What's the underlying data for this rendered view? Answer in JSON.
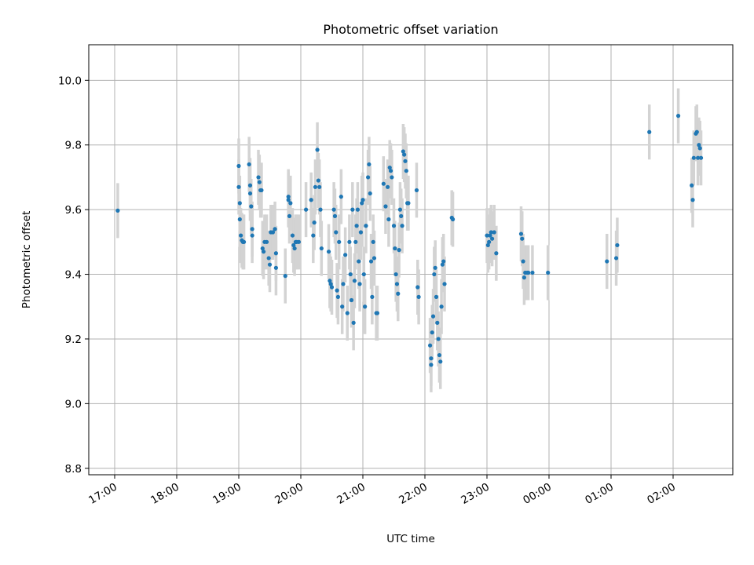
{
  "chart_data": {
    "type": "scatter",
    "title": "Photometric offset variation",
    "xlabel": "UTC time",
    "ylabel": "Photometric offset",
    "grid": true,
    "x_axis": {
      "type": "time",
      "range": [
        "17:00",
        "02:56"
      ],
      "ticks": [
        "17:00",
        "18:00",
        "19:00",
        "20:00",
        "21:00",
        "22:00",
        "23:00",
        "00:00",
        "01:00",
        "02:00"
      ]
    },
    "y_axis": {
      "range": [
        8.78,
        10.11
      ],
      "ticks": [
        "8.8",
        "9.0",
        "9.2",
        "9.4",
        "9.6",
        "9.8",
        "10.0"
      ]
    },
    "colors": {
      "marker": "#1f77b4",
      "errorbar": "#d3d3d3",
      "grid": "#b0b0b0"
    },
    "errorbar_halfwidth": 0.085,
    "series": [
      {
        "points": [
          {
            "x": "17:03",
            "y": 9.597
          },
          {
            "x": "19:00",
            "y": 9.735
          },
          {
            "x": "19:00",
            "y": 9.67
          },
          {
            "x": "19:01",
            "y": 9.62
          },
          {
            "x": "19:01",
            "y": 9.57
          },
          {
            "x": "19:02",
            "y": 9.52
          },
          {
            "x": "19:03",
            "y": 9.505
          },
          {
            "x": "19:04",
            "y": 9.5
          },
          {
            "x": "19:05",
            "y": 9.5
          },
          {
            "x": "19:10",
            "y": 9.74
          },
          {
            "x": "19:11",
            "y": 9.675
          },
          {
            "x": "19:11",
            "y": 9.65
          },
          {
            "x": "19:12",
            "y": 9.61
          },
          {
            "x": "19:13",
            "y": 9.54
          },
          {
            "x": "19:13",
            "y": 9.52
          },
          {
            "x": "19:19",
            "y": 9.7
          },
          {
            "x": "19:20",
            "y": 9.685
          },
          {
            "x": "19:21",
            "y": 9.66
          },
          {
            "x": "19:22",
            "y": 9.66
          },
          {
            "x": "19:23",
            "y": 9.48
          },
          {
            "x": "19:24",
            "y": 9.47
          },
          {
            "x": "19:25",
            "y": 9.5
          },
          {
            "x": "19:27",
            "y": 9.5
          },
          {
            "x": "19:29",
            "y": 9.45
          },
          {
            "x": "19:30",
            "y": 9.43
          },
          {
            "x": "19:31",
            "y": 9.53
          },
          {
            "x": "19:33",
            "y": 9.53
          },
          {
            "x": "19:35",
            "y": 9.54
          },
          {
            "x": "19:36",
            "y": 9.465
          },
          {
            "x": "19:36",
            "y": 9.42
          },
          {
            "x": "19:45",
            "y": 9.395
          },
          {
            "x": "19:48",
            "y": 9.64
          },
          {
            "x": "19:48",
            "y": 9.63
          },
          {
            "x": "19:49",
            "y": 9.58
          },
          {
            "x": "19:50",
            "y": 9.62
          },
          {
            "x": "19:52",
            "y": 9.52
          },
          {
            "x": "19:53",
            "y": 9.49
          },
          {
            "x": "19:54",
            "y": 9.48
          },
          {
            "x": "19:55",
            "y": 9.5
          },
          {
            "x": "19:56",
            "y": 9.5
          },
          {
            "x": "19:58",
            "y": 9.5
          },
          {
            "x": "20:05",
            "y": 9.6
          },
          {
            "x": "20:10",
            "y": 9.63
          },
          {
            "x": "20:12",
            "y": 9.52
          },
          {
            "x": "20:13",
            "y": 9.56
          },
          {
            "x": "20:14",
            "y": 9.67
          },
          {
            "x": "20:16",
            "y": 9.785
          },
          {
            "x": "20:17",
            "y": 9.69
          },
          {
            "x": "20:18",
            "y": 9.67
          },
          {
            "x": "20:19",
            "y": 9.6
          },
          {
            "x": "20:20",
            "y": 9.48
          },
          {
            "x": "20:27",
            "y": 9.47
          },
          {
            "x": "20:28",
            "y": 9.38
          },
          {
            "x": "20:29",
            "y": 9.37
          },
          {
            "x": "20:30",
            "y": 9.36
          },
          {
            "x": "20:32",
            "y": 9.6
          },
          {
            "x": "20:33",
            "y": 9.58
          },
          {
            "x": "20:34",
            "y": 9.53
          },
          {
            "x": "20:35",
            "y": 9.35
          },
          {
            "x": "20:36",
            "y": 9.33
          },
          {
            "x": "20:37",
            "y": 9.5
          },
          {
            "x": "20:39",
            "y": 9.64
          },
          {
            "x": "20:40",
            "y": 9.3
          },
          {
            "x": "20:41",
            "y": 9.37
          },
          {
            "x": "20:43",
            "y": 9.46
          },
          {
            "x": "20:45",
            "y": 9.28
          },
          {
            "x": "20:47",
            "y": 9.5
          },
          {
            "x": "20:48",
            "y": 9.4
          },
          {
            "x": "20:49",
            "y": 9.32
          },
          {
            "x": "20:50",
            "y": 9.6
          },
          {
            "x": "20:51",
            "y": 9.25
          },
          {
            "x": "20:52",
            "y": 9.38
          },
          {
            "x": "20:53",
            "y": 9.5
          },
          {
            "x": "20:54",
            "y": 9.55
          },
          {
            "x": "20:55",
            "y": 9.6
          },
          {
            "x": "20:56",
            "y": 9.44
          },
          {
            "x": "20:57",
            "y": 9.37
          },
          {
            "x": "20:58",
            "y": 9.53
          },
          {
            "x": "20:59",
            "y": 9.62
          },
          {
            "x": "21:00",
            "y": 9.63
          },
          {
            "x": "21:01",
            "y": 9.4
          },
          {
            "x": "21:02",
            "y": 9.3
          },
          {
            "x": "21:03",
            "y": 9.55
          },
          {
            "x": "21:05",
            "y": 9.7
          },
          {
            "x": "21:06",
            "y": 9.74
          },
          {
            "x": "21:07",
            "y": 9.65
          },
          {
            "x": "21:08",
            "y": 9.44
          },
          {
            "x": "21:09",
            "y": 9.33
          },
          {
            "x": "21:10",
            "y": 9.5
          },
          {
            "x": "21:11",
            "y": 9.45
          },
          {
            "x": "21:13",
            "y": 9.28
          },
          {
            "x": "21:14",
            "y": 9.28
          },
          {
            "x": "21:20",
            "y": 9.68
          },
          {
            "x": "21:22",
            "y": 9.61
          },
          {
            "x": "21:24",
            "y": 9.67
          },
          {
            "x": "21:25",
            "y": 9.57
          },
          {
            "x": "21:26",
            "y": 9.73
          },
          {
            "x": "21:27",
            "y": 9.72
          },
          {
            "x": "21:28",
            "y": 9.7
          },
          {
            "x": "21:30",
            "y": 9.55
          },
          {
            "x": "21:31",
            "y": 9.48
          },
          {
            "x": "21:32",
            "y": 9.4
          },
          {
            "x": "21:33",
            "y": 9.37
          },
          {
            "x": "21:34",
            "y": 9.34
          },
          {
            "x": "21:35",
            "y": 9.475
          },
          {
            "x": "21:36",
            "y": 9.6
          },
          {
            "x": "21:37",
            "y": 9.58
          },
          {
            "x": "21:38",
            "y": 9.55
          },
          {
            "x": "21:39",
            "y": 9.78
          },
          {
            "x": "21:40",
            "y": 9.77
          },
          {
            "x": "21:41",
            "y": 9.75
          },
          {
            "x": "21:42",
            "y": 9.72
          },
          {
            "x": "21:43",
            "y": 9.62
          },
          {
            "x": "21:44",
            "y": 9.62
          },
          {
            "x": "21:52",
            "y": 9.66
          },
          {
            "x": "21:53",
            "y": 9.36
          },
          {
            "x": "21:54",
            "y": 9.33
          },
          {
            "x": "22:05",
            "y": 9.18
          },
          {
            "x": "22:06",
            "y": 9.14
          },
          {
            "x": "22:06",
            "y": 9.12
          },
          {
            "x": "22:07",
            "y": 9.22
          },
          {
            "x": "22:08",
            "y": 9.27
          },
          {
            "x": "22:09",
            "y": 9.4
          },
          {
            "x": "22:10",
            "y": 9.42
          },
          {
            "x": "22:11",
            "y": 9.33
          },
          {
            "x": "22:12",
            "y": 9.25
          },
          {
            "x": "22:13",
            "y": 9.2
          },
          {
            "x": "22:14",
            "y": 9.15
          },
          {
            "x": "22:15",
            "y": 9.13
          },
          {
            "x": "22:16",
            "y": 9.3
          },
          {
            "x": "22:17",
            "y": 9.43
          },
          {
            "x": "22:18",
            "y": 9.44
          },
          {
            "x": "22:19",
            "y": 9.37
          },
          {
            "x": "22:26",
            "y": 9.575
          },
          {
            "x": "22:27",
            "y": 9.57
          },
          {
            "x": "23:00",
            "y": 9.52
          },
          {
            "x": "23:01",
            "y": 9.49
          },
          {
            "x": "23:02",
            "y": 9.5
          },
          {
            "x": "23:03",
            "y": 9.52
          },
          {
            "x": "23:04",
            "y": 9.53
          },
          {
            "x": "23:05",
            "y": 9.51
          },
          {
            "x": "23:07",
            "y": 9.53
          },
          {
            "x": "23:09",
            "y": 9.465
          },
          {
            "x": "23:33",
            "y": 9.525
          },
          {
            "x": "23:34",
            "y": 9.51
          },
          {
            "x": "23:35",
            "y": 9.44
          },
          {
            "x": "23:36",
            "y": 9.39
          },
          {
            "x": "23:37",
            "y": 9.405
          },
          {
            "x": "23:39",
            "y": 9.405
          },
          {
            "x": "23:40",
            "y": 9.405
          },
          {
            "x": "23:44",
            "y": 9.405
          },
          {
            "x": "23:59",
            "y": 9.405
          },
          {
            "x": "00:56",
            "y": 9.44
          },
          {
            "x": "01:05",
            "y": 9.45
          },
          {
            "x": "01:06",
            "y": 9.49
          },
          {
            "x": "01:37",
            "y": 9.84
          },
          {
            "x": "02:05",
            "y": 9.89
          },
          {
            "x": "02:18",
            "y": 9.675
          },
          {
            "x": "02:19",
            "y": 9.63
          },
          {
            "x": "02:20",
            "y": 9.76
          },
          {
            "x": "02:22",
            "y": 9.835
          },
          {
            "x": "02:23",
            "y": 9.84
          },
          {
            "x": "02:24",
            "y": 9.76
          },
          {
            "x": "02:25",
            "y": 9.8
          },
          {
            "x": "02:26",
            "y": 9.79
          },
          {
            "x": "02:27",
            "y": 9.76
          }
        ]
      }
    ]
  }
}
